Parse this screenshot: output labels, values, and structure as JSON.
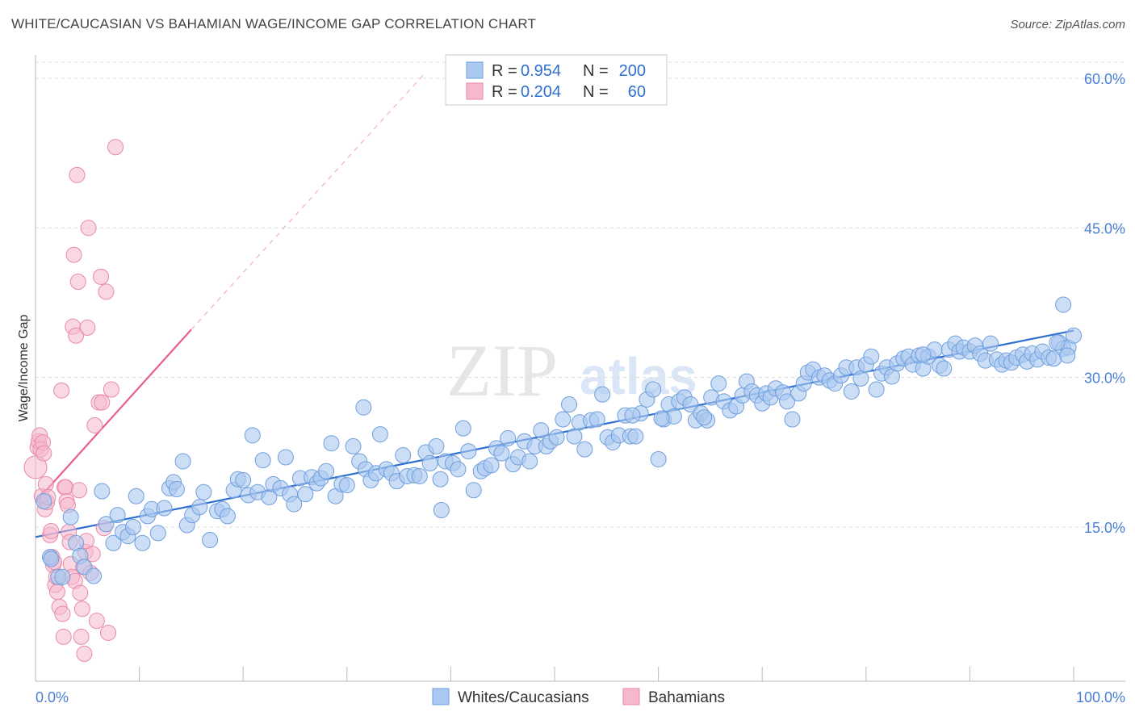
{
  "title": "WHITE/CAUCASIAN VS BAHAMIAN WAGE/INCOME GAP CORRELATION CHART",
  "source": "Source: ZipAtlas.com",
  "watermark": {
    "zip": "ZIP",
    "atlas": "atlas"
  },
  "colors": {
    "blue_fill": "#aac8f0",
    "blue_stroke": "#6f9fde",
    "blue_line": "#2f6fd0",
    "pink_fill": "#f5b8cc",
    "pink_stroke": "#e88aa8",
    "pink_line": "#e8608a",
    "tick_text": "#4a7fd6",
    "grid": "#dddddd"
  },
  "legend": {
    "rows": [
      {
        "r_label": "R = ",
        "r_value": "0.954",
        "n_label": "N = ",
        "n_value": "200"
      },
      {
        "r_label": "R = ",
        "r_value": "0.204",
        "n_label": "N = ",
        "n_value": "60"
      }
    ]
  },
  "chart_data": {
    "type": "scatter",
    "title": "WHITE/CAUCASIAN VS BAHAMIAN WAGE/INCOME GAP CORRELATION CHART",
    "xlabel": "",
    "ylabel": "Wage/Income Gap",
    "xlim": [
      0,
      100
    ],
    "ylim": [
      0,
      62
    ],
    "x_tick_labels": [
      "0.0%",
      "100.0%"
    ],
    "y_ticks": [
      15,
      30,
      45,
      60
    ],
    "y_tick_labels": [
      "15.0%",
      "30.0%",
      "45.0%",
      "60.0%"
    ],
    "series": [
      {
        "name": "Whites/Caucasians",
        "color": "#aac8f0",
        "R": 0.954,
        "N": 200,
        "trend": {
          "x": [
            0,
            100
          ],
          "y": [
            14.0,
            34.7
          ]
        },
        "points": [
          [
            0.8,
            17.6
          ],
          [
            1.4,
            12.0
          ],
          [
            1.5,
            11.8
          ],
          [
            2.2,
            10.0
          ],
          [
            2.6,
            10.0
          ],
          [
            3.4,
            16.0
          ],
          [
            3.9,
            13.4
          ],
          [
            4.3,
            12.1
          ],
          [
            4.7,
            11.0
          ],
          [
            5.6,
            10.1
          ],
          [
            6.4,
            18.6
          ],
          [
            6.8,
            15.3
          ],
          [
            7.5,
            13.4
          ],
          [
            7.9,
            16.2
          ],
          [
            8.4,
            14.5
          ],
          [
            8.9,
            14.1
          ],
          [
            9.4,
            15.0
          ],
          [
            9.7,
            18.1
          ],
          [
            10.3,
            13.4
          ],
          [
            10.8,
            16.1
          ],
          [
            11.2,
            16.8
          ],
          [
            11.8,
            14.4
          ],
          [
            12.4,
            16.9
          ],
          [
            12.9,
            18.9
          ],
          [
            13.3,
            19.5
          ],
          [
            13.6,
            18.8
          ],
          [
            14.2,
            21.6
          ],
          [
            14.6,
            15.2
          ],
          [
            15.1,
            16.2
          ],
          [
            15.8,
            17.0
          ],
          [
            16.2,
            18.5
          ],
          [
            16.8,
            13.7
          ],
          [
            17.5,
            16.6
          ],
          [
            18.0,
            16.8
          ],
          [
            18.5,
            16.1
          ],
          [
            19.1,
            18.7
          ],
          [
            19.5,
            19.8
          ],
          [
            20.0,
            19.7
          ],
          [
            20.5,
            18.2
          ],
          [
            20.9,
            24.2
          ],
          [
            21.4,
            18.5
          ],
          [
            21.9,
            21.7
          ],
          [
            22.5,
            18.0
          ],
          [
            22.9,
            19.3
          ],
          [
            23.6,
            18.9
          ],
          [
            24.1,
            22.0
          ],
          [
            24.5,
            18.3
          ],
          [
            24.9,
            17.3
          ],
          [
            25.5,
            19.9
          ],
          [
            26.0,
            18.3
          ],
          [
            26.6,
            20.0
          ],
          [
            27.1,
            19.4
          ],
          [
            27.5,
            19.9
          ],
          [
            28.0,
            20.6
          ],
          [
            28.5,
            23.4
          ],
          [
            28.9,
            18.1
          ],
          [
            29.5,
            19.3
          ],
          [
            30.0,
            19.2
          ],
          [
            30.6,
            23.1
          ],
          [
            31.2,
            21.6
          ],
          [
            31.8,
            20.8
          ],
          [
            32.3,
            19.7
          ],
          [
            32.8,
            20.4
          ],
          [
            33.2,
            24.3
          ],
          [
            33.8,
            20.8
          ],
          [
            34.3,
            20.4
          ],
          [
            34.8,
            19.6
          ],
          [
            35.4,
            22.2
          ],
          [
            35.8,
            20.1
          ],
          [
            36.5,
            20.2
          ],
          [
            37.0,
            20.1
          ],
          [
            37.6,
            22.5
          ],
          [
            38.0,
            21.4
          ],
          [
            38.6,
            23.1
          ],
          [
            39.0,
            19.8
          ],
          [
            39.5,
            21.6
          ],
          [
            40.2,
            21.4
          ],
          [
            40.7,
            20.8
          ],
          [
            41.2,
            24.9
          ],
          [
            41.7,
            22.6
          ],
          [
            42.2,
            18.7
          ],
          [
            42.9,
            20.6
          ],
          [
            43.3,
            20.9
          ],
          [
            43.9,
            21.2
          ],
          [
            44.4,
            22.9
          ],
          [
            44.9,
            22.4
          ],
          [
            45.5,
            23.9
          ],
          [
            46.0,
            21.3
          ],
          [
            46.5,
            22.0
          ],
          [
            47.1,
            23.6
          ],
          [
            47.6,
            21.6
          ],
          [
            48.1,
            23.1
          ],
          [
            48.7,
            24.7
          ],
          [
            49.2,
            23.1
          ],
          [
            49.6,
            23.6
          ],
          [
            50.2,
            24.0
          ],
          [
            50.8,
            25.8
          ],
          [
            51.4,
            27.3
          ],
          [
            51.9,
            24.1
          ],
          [
            52.4,
            25.5
          ],
          [
            52.9,
            22.8
          ],
          [
            53.5,
            25.7
          ],
          [
            54.1,
            25.8
          ],
          [
            54.6,
            28.3
          ],
          [
            55.1,
            24.0
          ],
          [
            55.6,
            23.5
          ],
          [
            56.2,
            24.2
          ],
          [
            56.8,
            26.2
          ],
          [
            57.3,
            24.1
          ],
          [
            57.8,
            24.1
          ],
          [
            58.3,
            26.4
          ],
          [
            58.9,
            27.8
          ],
          [
            59.5,
            28.8
          ],
          [
            60.0,
            21.8
          ],
          [
            60.5,
            25.8
          ],
          [
            61.0,
            27.3
          ],
          [
            61.5,
            26.1
          ],
          [
            62.0,
            27.6
          ],
          [
            62.5,
            28.0
          ],
          [
            63.1,
            27.3
          ],
          [
            63.6,
            25.7
          ],
          [
            64.1,
            26.4
          ],
          [
            64.7,
            25.7
          ],
          [
            65.1,
            28.0
          ],
          [
            65.8,
            29.4
          ],
          [
            66.3,
            27.6
          ],
          [
            66.9,
            26.7
          ],
          [
            67.5,
            27.1
          ],
          [
            68.1,
            28.2
          ],
          [
            68.5,
            29.6
          ],
          [
            69.0,
            28.6
          ],
          [
            69.5,
            28.2
          ],
          [
            70.0,
            27.4
          ],
          [
            70.4,
            28.4
          ],
          [
            70.8,
            28.0
          ],
          [
            71.3,
            28.9
          ],
          [
            72.0,
            28.5
          ],
          [
            72.4,
            27.6
          ],
          [
            72.9,
            25.8
          ],
          [
            73.5,
            28.4
          ],
          [
            74.0,
            29.4
          ],
          [
            74.4,
            30.5
          ],
          [
            74.9,
            30.8
          ],
          [
            75.5,
            30.0
          ],
          [
            76.0,
            30.2
          ],
          [
            76.5,
            29.7
          ],
          [
            77.0,
            29.4
          ],
          [
            77.6,
            30.2
          ],
          [
            78.1,
            31.0
          ],
          [
            78.6,
            28.6
          ],
          [
            79.1,
            31.0
          ],
          [
            79.5,
            29.9
          ],
          [
            80.0,
            31.3
          ],
          [
            80.5,
            32.1
          ],
          [
            81.0,
            28.8
          ],
          [
            81.5,
            30.4
          ],
          [
            82.0,
            31.0
          ],
          [
            82.5,
            30.1
          ],
          [
            83.0,
            31.4
          ],
          [
            83.6,
            31.9
          ],
          [
            84.1,
            32.1
          ],
          [
            84.5,
            31.3
          ],
          [
            85.1,
            32.2
          ],
          [
            85.5,
            30.9
          ],
          [
            86.0,
            32.1
          ],
          [
            86.6,
            32.8
          ],
          [
            87.1,
            31.2
          ],
          [
            87.5,
            30.9
          ],
          [
            88.0,
            32.8
          ],
          [
            88.6,
            33.4
          ],
          [
            89.0,
            32.6
          ],
          [
            89.4,
            33.0
          ],
          [
            90.0,
            32.6
          ],
          [
            90.5,
            33.2
          ],
          [
            91.0,
            32.4
          ],
          [
            91.5,
            31.7
          ],
          [
            92.0,
            33.4
          ],
          [
            92.6,
            31.8
          ],
          [
            93.1,
            31.3
          ],
          [
            93.5,
            31.7
          ],
          [
            94.0,
            31.5
          ],
          [
            94.5,
            32.0
          ],
          [
            95.1,
            32.3
          ],
          [
            95.5,
            31.6
          ],
          [
            96.0,
            32.4
          ],
          [
            96.5,
            31.8
          ],
          [
            97.0,
            32.6
          ],
          [
            97.6,
            32.0
          ],
          [
            98.1,
            31.9
          ],
          [
            98.6,
            33.5
          ],
          [
            99.0,
            32.9
          ],
          [
            99.5,
            33.0
          ],
          [
            100.0,
            34.2
          ],
          [
            99.4,
            32.2
          ],
          [
            99.0,
            37.3
          ],
          [
            98.4,
            33.5
          ],
          [
            85.5,
            32.3
          ],
          [
            64.4,
            26.0
          ],
          [
            39.1,
            16.7
          ],
          [
            31.6,
            27.0
          ],
          [
            57.5,
            26.2
          ],
          [
            60.3,
            25.9
          ]
        ]
      },
      {
        "name": "Bahamians",
        "color": "#f5b8cc",
        "R": 0.204,
        "N": 60,
        "trend": {
          "x": [
            0,
            15
          ],
          "y": [
            17.5,
            34.8
          ]
        },
        "trend_ext": {
          "x": [
            15,
            37.5
          ],
          "y": [
            34.8,
            60.5
          ]
        },
        "points": [
          [
            0.0,
            21.0
          ],
          [
            0.2,
            23.0
          ],
          [
            0.3,
            23.6
          ],
          [
            0.4,
            24.2
          ],
          [
            0.5,
            22.8
          ],
          [
            0.6,
            18.1
          ],
          [
            0.7,
            23.5
          ],
          [
            0.8,
            22.4
          ],
          [
            0.9,
            16.8
          ],
          [
            1.0,
            19.3
          ],
          [
            1.1,
            17.5
          ],
          [
            1.2,
            18.0
          ],
          [
            1.4,
            14.2
          ],
          [
            1.5,
            14.6
          ],
          [
            1.6,
            12.0
          ],
          [
            1.7,
            11.2
          ],
          [
            1.8,
            11.5
          ],
          [
            1.9,
            9.2
          ],
          [
            2.0,
            10.0
          ],
          [
            2.1,
            8.5
          ],
          [
            2.3,
            7.0
          ],
          [
            2.5,
            28.7
          ],
          [
            2.6,
            6.3
          ],
          [
            2.7,
            4.0
          ],
          [
            2.8,
            19.0
          ],
          [
            2.9,
            19.0
          ],
          [
            3.0,
            17.6
          ],
          [
            3.1,
            17.2
          ],
          [
            3.2,
            14.5
          ],
          [
            3.3,
            13.5
          ],
          [
            3.4,
            11.3
          ],
          [
            3.5,
            10.0
          ],
          [
            3.6,
            35.1
          ],
          [
            3.7,
            42.3
          ],
          [
            3.8,
            9.6
          ],
          [
            3.9,
            34.2
          ],
          [
            4.0,
            50.3
          ],
          [
            4.1,
            39.6
          ],
          [
            4.2,
            18.7
          ],
          [
            4.3,
            8.4
          ],
          [
            4.4,
            4.0
          ],
          [
            4.5,
            6.8
          ],
          [
            4.6,
            11.0
          ],
          [
            4.7,
            2.3
          ],
          [
            4.8,
            12.5
          ],
          [
            4.9,
            13.6
          ],
          [
            5.0,
            35.0
          ],
          [
            5.1,
            45.0
          ],
          [
            5.3,
            10.4
          ],
          [
            5.5,
            12.3
          ],
          [
            5.7,
            25.2
          ],
          [
            5.9,
            5.6
          ],
          [
            6.1,
            27.5
          ],
          [
            6.3,
            40.1
          ],
          [
            6.4,
            27.5
          ],
          [
            6.6,
            14.9
          ],
          [
            6.8,
            38.6
          ],
          [
            7.0,
            4.4
          ],
          [
            7.3,
            28.8
          ],
          [
            7.7,
            53.1
          ]
        ]
      }
    ]
  },
  "bottom_legend": {
    "series1": "Whites/Caucasians",
    "series2": "Bahamians"
  }
}
